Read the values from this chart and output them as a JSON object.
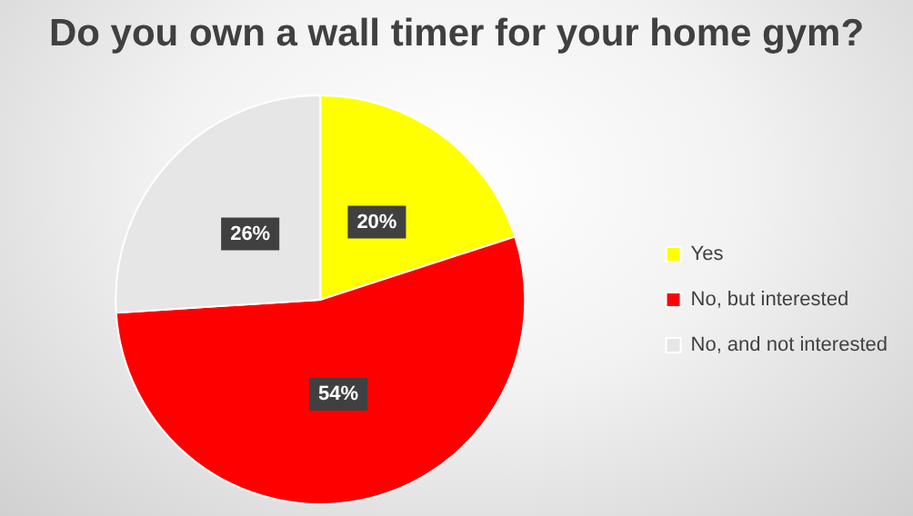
{
  "chart_data": {
    "type": "pie",
    "title": "Do you own a wall timer for your home gym?",
    "categories": [
      "Yes",
      "No, but interested",
      "No, and not interested"
    ],
    "values": [
      20,
      54,
      26
    ],
    "colors": [
      "#ffff00",
      "#ff0000",
      "#e6e6e6"
    ],
    "value_labels": [
      "20%",
      "54%",
      "26%"
    ],
    "legend": "right"
  }
}
